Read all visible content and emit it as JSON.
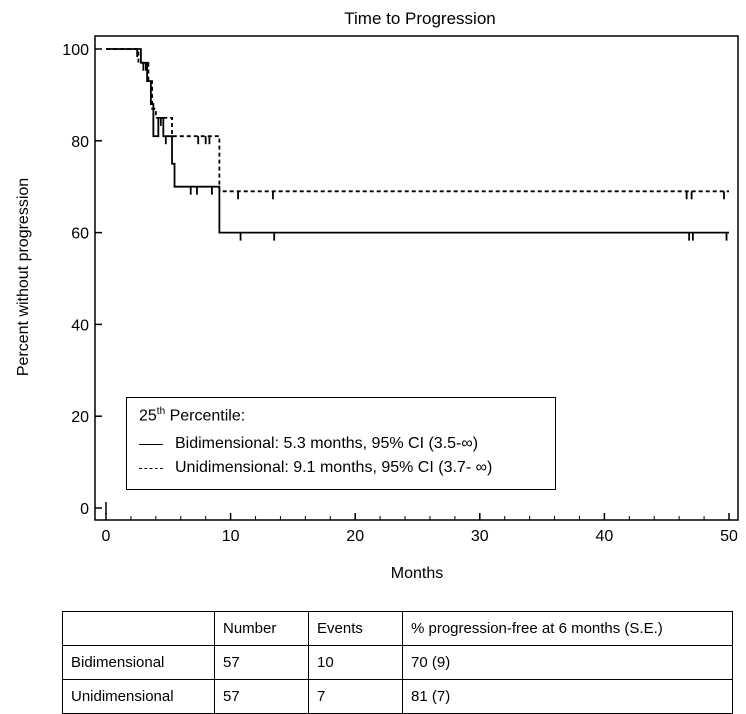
{
  "chart_data": {
    "type": "line",
    "title": "Time to Progression",
    "xlabel": "Months",
    "ylabel": "Percent without progression",
    "xlim": [
      0,
      50
    ],
    "ylim": [
      0,
      100
    ],
    "xticks": [
      0,
      10,
      20,
      30,
      40,
      50
    ],
    "yticks": [
      0,
      20,
      40,
      60,
      80,
      100
    ],
    "grid": false,
    "legend_placement": "bottom-left",
    "series": [
      {
        "name": "Bidimensional",
        "style": "solid",
        "steps": [
          [
            0,
            100
          ],
          [
            2.8,
            97
          ],
          [
            3.3,
            93
          ],
          [
            3.6,
            88
          ],
          [
            3.8,
            81
          ],
          [
            4.2,
            85
          ],
          [
            4.6,
            81
          ],
          [
            5.3,
            75
          ],
          [
            5.5,
            70
          ],
          [
            9.1,
            60
          ],
          [
            50,
            60
          ]
        ],
        "censor_x": [
          2.5,
          3.0,
          4.8,
          6.8,
          7.3,
          8.5,
          10.8,
          13.5,
          46.8,
          47.1,
          49.8
        ]
      },
      {
        "name": "Unidimensional",
        "style": "dashed",
        "steps": [
          [
            0,
            100
          ],
          [
            2.6,
            97
          ],
          [
            3.4,
            93
          ],
          [
            3.7,
            87
          ],
          [
            4.0,
            85
          ],
          [
            5.3,
            81
          ],
          [
            9.1,
            69
          ],
          [
            50,
            69
          ]
        ],
        "censor_x": [
          3.2,
          4.4,
          7.4,
          8.0,
          8.3,
          10.6,
          13.4,
          46.6,
          47.0,
          49.6
        ]
      }
    ]
  },
  "legend": {
    "title_main": "25",
    "title_sup": "th",
    "title_rest": " Percentile:",
    "entries": [
      {
        "text": "Bidimensional: 5.3 months, 95% CI (3.5-∞)"
      },
      {
        "text": "Unidimensional: 9.1 months, 95% CI (3.7- ∞)"
      }
    ]
  },
  "table": {
    "headers": [
      "",
      "Number",
      "Events",
      "% progression-free at 6 months (S.E.)"
    ],
    "rows": [
      [
        "Bidimensional",
        "57",
        "10",
        "70  (9)"
      ],
      [
        "Unidimensional",
        "57",
        "7",
        "81  (7)"
      ]
    ]
  }
}
